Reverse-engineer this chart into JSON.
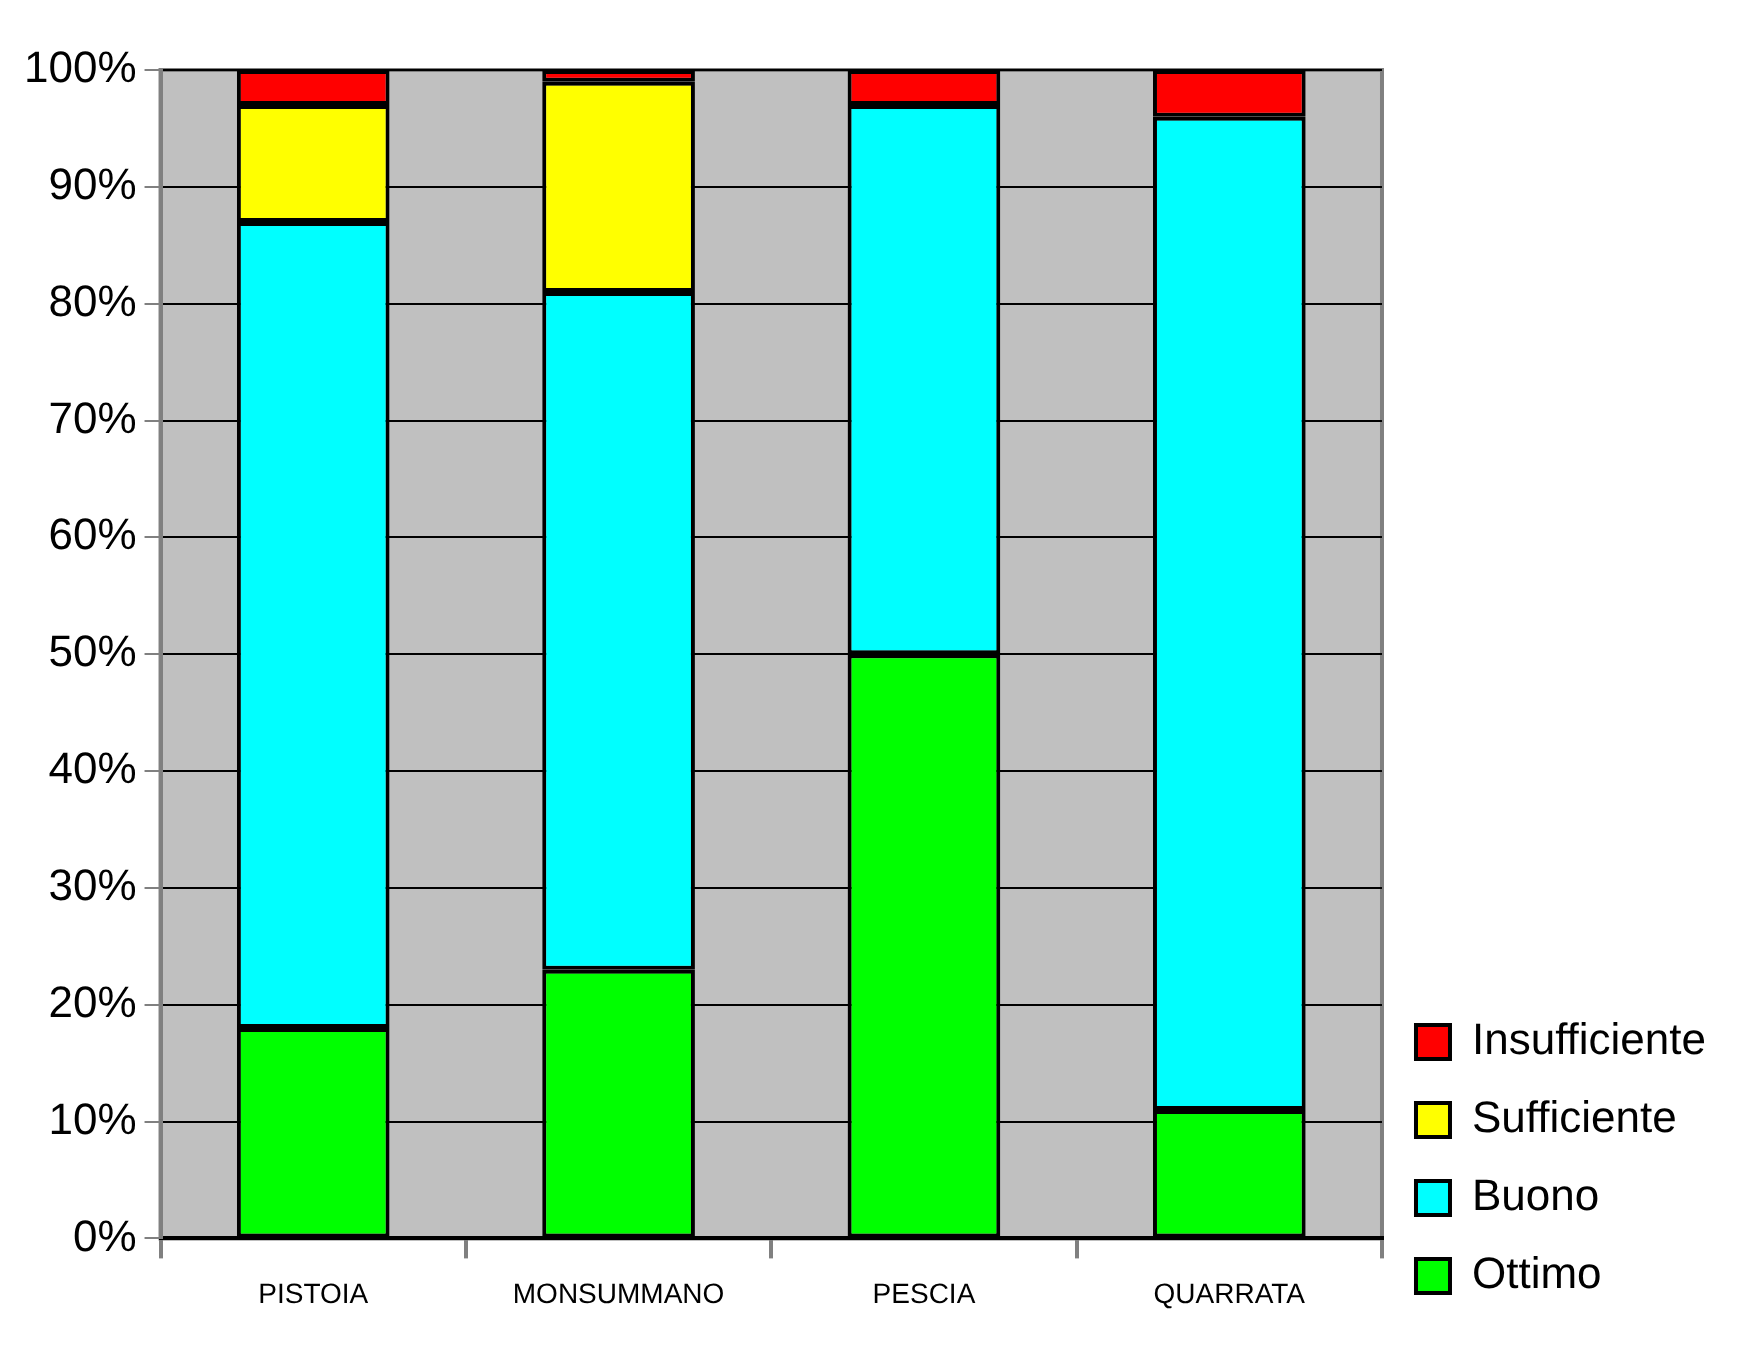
{
  "chart_data": {
    "type": "bar",
    "stacked": true,
    "categories": [
      "PISTOIA",
      "MONSUMMANO",
      "PESCIA",
      "QUARRATA"
    ],
    "series": [
      {
        "name": "Ottimo",
        "color": "#00ff00",
        "values": [
          18,
          23,
          50,
          11
        ]
      },
      {
        "name": "Buono",
        "color": "#00ffff",
        "values": [
          69,
          58,
          47,
          85
        ]
      },
      {
        "name": "Sufficiente",
        "color": "#ffff00",
        "values": [
          10,
          18,
          0,
          0
        ]
      },
      {
        "name": "Insufficiente",
        "color": "#ff0000",
        "values": [
          3,
          1,
          3,
          4
        ]
      }
    ],
    "ylim": [
      0,
      100
    ],
    "yticks": [
      {
        "value": 0,
        "label": "0%"
      },
      {
        "value": 10,
        "label": "10%"
      },
      {
        "value": 20,
        "label": "20%"
      },
      {
        "value": 30,
        "label": "30%"
      },
      {
        "value": 40,
        "label": "40%"
      },
      {
        "value": 50,
        "label": "50%"
      },
      {
        "value": 60,
        "label": "60%"
      },
      {
        "value": 70,
        "label": "70%"
      },
      {
        "value": 80,
        "label": "80%"
      },
      {
        "value": 90,
        "label": "90%"
      },
      {
        "value": 100,
        "label": "100%"
      }
    ],
    "grid": "y",
    "legend": "bottom right"
  }
}
